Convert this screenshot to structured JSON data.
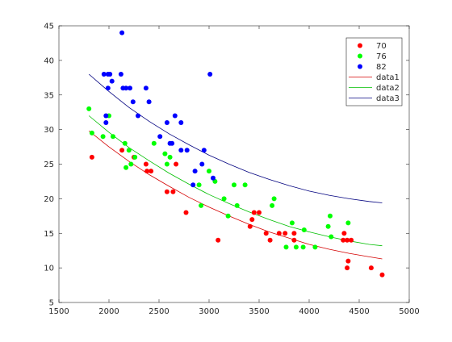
{
  "chart_data": {
    "type": "scatter",
    "xlim": [
      1500,
      5000
    ],
    "ylim": [
      5,
      45
    ],
    "xticks": [
      1500,
      2000,
      2500,
      3000,
      3500,
      4000,
      4500,
      5000
    ],
    "yticks": [
      5,
      10,
      15,
      20,
      25,
      30,
      35,
      40,
      45
    ],
    "grid": false,
    "legend_position": "top-right",
    "series": [
      {
        "name": "70",
        "kind": "scatter",
        "color": "#ff0000",
        "points": [
          [
            1830,
            26
          ],
          [
            2130,
            27
          ],
          [
            2250,
            26
          ],
          [
            2370,
            25
          ],
          [
            2420,
            24
          ],
          [
            2380,
            24
          ],
          [
            2580,
            21
          ],
          [
            2640,
            21
          ],
          [
            2670,
            25
          ],
          [
            2770,
            18
          ],
          [
            3090,
            14
          ],
          [
            3410,
            16
          ],
          [
            3430,
            17
          ],
          [
            3450,
            18
          ],
          [
            3500,
            18
          ],
          [
            3570,
            15
          ],
          [
            3610,
            14
          ],
          [
            3700,
            15
          ],
          [
            3760,
            15
          ],
          [
            3850,
            15
          ],
          [
            3850,
            14
          ],
          [
            4340,
            14
          ],
          [
            4350,
            15
          ],
          [
            4380,
            14
          ],
          [
            4380,
            10
          ],
          [
            4390,
            11
          ],
          [
            4420,
            14
          ],
          [
            4620,
            10
          ],
          [
            4730,
            9
          ]
        ]
      },
      {
        "name": "76",
        "kind": "scatter",
        "color": "#00ff00",
        "points": [
          [
            1800,
            33
          ],
          [
            1830,
            29.5
          ],
          [
            1940,
            29
          ],
          [
            2000,
            32
          ],
          [
            2040,
            29
          ],
          [
            2160,
            28
          ],
          [
            2170,
            24.5
          ],
          [
            2200,
            27
          ],
          [
            2220,
            25
          ],
          [
            2260,
            26
          ],
          [
            2450,
            28
          ],
          [
            2560,
            26.5
          ],
          [
            2580,
            25
          ],
          [
            2610,
            26
          ],
          [
            2900,
            22
          ],
          [
            2920,
            19
          ],
          [
            3000,
            24
          ],
          [
            3060,
            22.5
          ],
          [
            3150,
            20
          ],
          [
            3190,
            17.5
          ],
          [
            3250,
            22
          ],
          [
            3280,
            19
          ],
          [
            3360,
            22
          ],
          [
            3630,
            19
          ],
          [
            3650,
            20
          ],
          [
            3770,
            13
          ],
          [
            3830,
            16.5
          ],
          [
            3870,
            13
          ],
          [
            3940,
            13
          ],
          [
            3950,
            15.5
          ],
          [
            4060,
            13
          ],
          [
            4190,
            16
          ],
          [
            4210,
            17.5
          ],
          [
            4220,
            14.5
          ],
          [
            4390,
            16.5
          ]
        ]
      },
      {
        "name": "82",
        "kind": "scatter",
        "color": "#0000ff",
        "points": [
          [
            1950,
            38
          ],
          [
            1970,
            32
          ],
          [
            1970,
            31
          ],
          [
            1990,
            36
          ],
          [
            1990,
            38
          ],
          [
            2010,
            38
          ],
          [
            2030,
            37
          ],
          [
            2120,
            38
          ],
          [
            2130,
            44
          ],
          [
            2140,
            36
          ],
          [
            2170,
            36
          ],
          [
            2210,
            36
          ],
          [
            2240,
            34
          ],
          [
            2290,
            32
          ],
          [
            2370,
            36
          ],
          [
            2400,
            34
          ],
          [
            2510,
            29
          ],
          [
            2580,
            31
          ],
          [
            2610,
            28
          ],
          [
            2630,
            28
          ],
          [
            2660,
            32
          ],
          [
            2720,
            31
          ],
          [
            2720,
            27
          ],
          [
            2780,
            27
          ],
          [
            2840,
            22
          ],
          [
            2860,
            24
          ],
          [
            2930,
            25
          ],
          [
            2950,
            27
          ],
          [
            3010,
            38
          ],
          [
            3040,
            23
          ]
        ]
      },
      {
        "name": "data1",
        "kind": "line",
        "color": "#d40000",
        "points": [
          [
            1800,
            29.8
          ],
          [
            2000,
            27.5
          ],
          [
            2200,
            25.4
          ],
          [
            2400,
            23.5
          ],
          [
            2600,
            21.8
          ],
          [
            2800,
            20.2
          ],
          [
            3000,
            18.8
          ],
          [
            3200,
            17.5
          ],
          [
            3400,
            16.3
          ],
          [
            3600,
            15.2
          ],
          [
            3800,
            14.3
          ],
          [
            4000,
            13.4
          ],
          [
            4200,
            12.7
          ],
          [
            4400,
            12.1
          ],
          [
            4600,
            11.6
          ],
          [
            4730,
            11.3
          ]
        ]
      },
      {
        "name": "data2",
        "kind": "line",
        "color": "#00bf00",
        "points": [
          [
            1800,
            32.0
          ],
          [
            2000,
            29.6
          ],
          [
            2200,
            27.4
          ],
          [
            2400,
            25.5
          ],
          [
            2600,
            23.7
          ],
          [
            2800,
            22.1
          ],
          [
            3000,
            20.6
          ],
          [
            3200,
            19.3
          ],
          [
            3400,
            18.1
          ],
          [
            3600,
            17.0
          ],
          [
            3800,
            16.0
          ],
          [
            4000,
            15.2
          ],
          [
            4200,
            14.5
          ],
          [
            4400,
            13.9
          ],
          [
            4600,
            13.4
          ],
          [
            4730,
            13.2
          ]
        ]
      },
      {
        "name": "data3",
        "kind": "line",
        "color": "#00007f",
        "points": [
          [
            1800,
            38.0
          ],
          [
            2000,
            35.5
          ],
          [
            2200,
            33.2
          ],
          [
            2400,
            31.2
          ],
          [
            2600,
            29.4
          ],
          [
            2800,
            27.8
          ],
          [
            3000,
            26.3
          ],
          [
            3200,
            25.0
          ],
          [
            3400,
            23.8
          ],
          [
            3600,
            22.8
          ],
          [
            3800,
            21.9
          ],
          [
            4000,
            21.1
          ],
          [
            4200,
            20.5
          ],
          [
            4400,
            20.0
          ],
          [
            4600,
            19.6
          ],
          [
            4730,
            19.4
          ]
        ]
      }
    ]
  }
}
